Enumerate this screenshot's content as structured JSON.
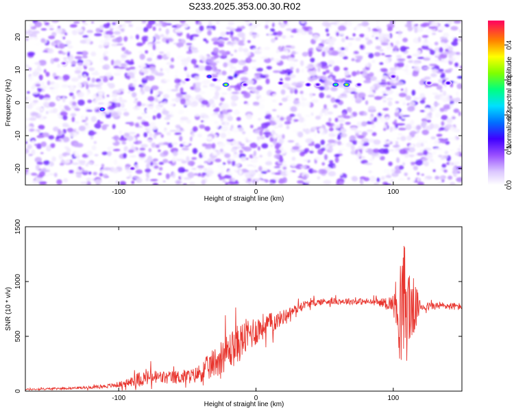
{
  "title": "S233.2025.353.00.30.R02",
  "chart_data": [
    {
      "type": "heatmap",
      "xlabel": "Height of straight line (km)",
      "ylabel": "Frequency (Hz)",
      "xlim": [
        -168,
        150
      ],
      "ylim": [
        -25,
        25
      ],
      "xticks": [
        -100,
        0,
        100
      ],
      "yticks": [
        -20,
        -10,
        0,
        10,
        20
      ],
      "colorbar": {
        "label": "Normalized spectral amplitude",
        "range": [
          0,
          0.47
        ],
        "ticks": [
          "0.0",
          "0.1",
          "0.2",
          "0.3",
          "0.4"
        ],
        "colors": [
          "#ffffff",
          "#b48cff",
          "#7a00ff",
          "#0000ff",
          "#00c8ff",
          "#00ff60",
          "#ffff00",
          "#ff8000",
          "#ff0060"
        ]
      },
      "hot_spots": [
        {
          "x": -112,
          "y": -2,
          "value": 0.22
        },
        {
          "x": -50,
          "y": 7,
          "value": 0.12
        },
        {
          "x": -34,
          "y": 8,
          "value": 0.18
        },
        {
          "x": -30,
          "y": 7,
          "value": 0.14
        },
        {
          "x": -22,
          "y": 5.5,
          "value": 0.36
        },
        {
          "x": -8,
          "y": 5.5,
          "value": 0.12
        },
        {
          "x": 18,
          "y": 6,
          "value": 0.12
        },
        {
          "x": 38,
          "y": 5.5,
          "value": 0.14
        },
        {
          "x": 45,
          "y": 5.5,
          "value": 0.12
        },
        {
          "x": 58,
          "y": 5.5,
          "value": 0.3
        },
        {
          "x": 66,
          "y": 5.5,
          "value": 0.38
        },
        {
          "x": 75,
          "y": 5.5,
          "value": 0.12
        },
        {
          "x": 100,
          "y": 8,
          "value": 0.12
        },
        {
          "x": 126,
          "y": 6,
          "value": 0.12
        },
        {
          "x": 140,
          "y": 6,
          "value": 0.14
        },
        {
          "x": -140,
          "y": 12,
          "value": 0.08
        },
        {
          "x": -90,
          "y": -20,
          "value": 0.1
        }
      ]
    },
    {
      "type": "line",
      "xlabel": "Height of straight line (km)",
      "ylabel": "SNR (10 * v/v)",
      "xlim": [
        -168,
        150
      ],
      "ylim": [
        0,
        1500
      ],
      "xticks": [
        -100,
        0,
        100
      ],
      "yticks": [
        0,
        500,
        1000,
        1500
      ],
      "color": "#e8362f",
      "profile_x": [
        -168,
        -140,
        -120,
        -105,
        -95,
        -85,
        -75,
        -65,
        -55,
        -45,
        -35,
        -25,
        -15,
        -5,
        5,
        15,
        25,
        35,
        50,
        70,
        90,
        100,
        105,
        108,
        112,
        120,
        135,
        150
      ],
      "profile_y": [
        15,
        25,
        35,
        50,
        70,
        110,
        130,
        120,
        130,
        140,
        210,
        320,
        410,
        520,
        590,
        640,
        720,
        790,
        820,
        820,
        810,
        800,
        780,
        780,
        760,
        770,
        780,
        770
      ],
      "profile_noise": [
        8,
        10,
        12,
        20,
        35,
        70,
        70,
        60,
        65,
        70,
        120,
        160,
        180,
        160,
        120,
        80,
        50,
        35,
        30,
        30,
        30,
        80,
        500,
        600,
        400,
        40,
        35,
        35
      ]
    }
  ]
}
